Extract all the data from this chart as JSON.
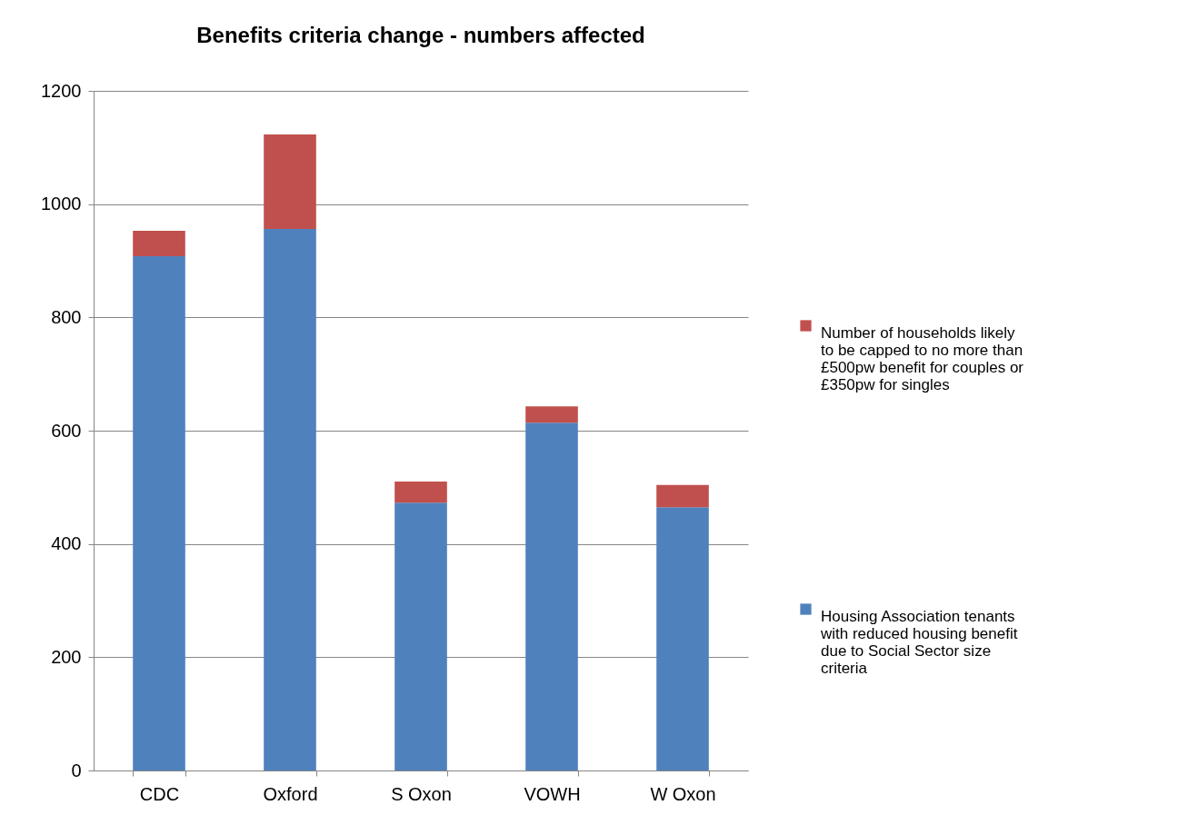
{
  "chart_data": {
    "type": "bar",
    "title": "Benefits criteria change - numbers affected",
    "categories": [
      "CDC",
      "Oxford",
      "S Oxon",
      "VOWH",
      "W Oxon"
    ],
    "stacked": true,
    "series": [
      {
        "name": "Housing Association tenants with reduced housing benefit due to Social Sector size criteria",
        "color": "#4f81bd",
        "values": [
          908,
          956,
          473,
          614,
          465
        ]
      },
      {
        "name": "Number of households likely to be capped to no more than £500pw benefit for couples or £350pw for singles",
        "color": "#c0504d",
        "values": [
          45,
          167,
          37,
          29,
          39
        ]
      }
    ],
    "ylim": [
      0,
      1200
    ],
    "yticks": [
      0,
      200,
      400,
      600,
      800,
      1000,
      1200
    ],
    "grid": "y",
    "legend": "right"
  }
}
